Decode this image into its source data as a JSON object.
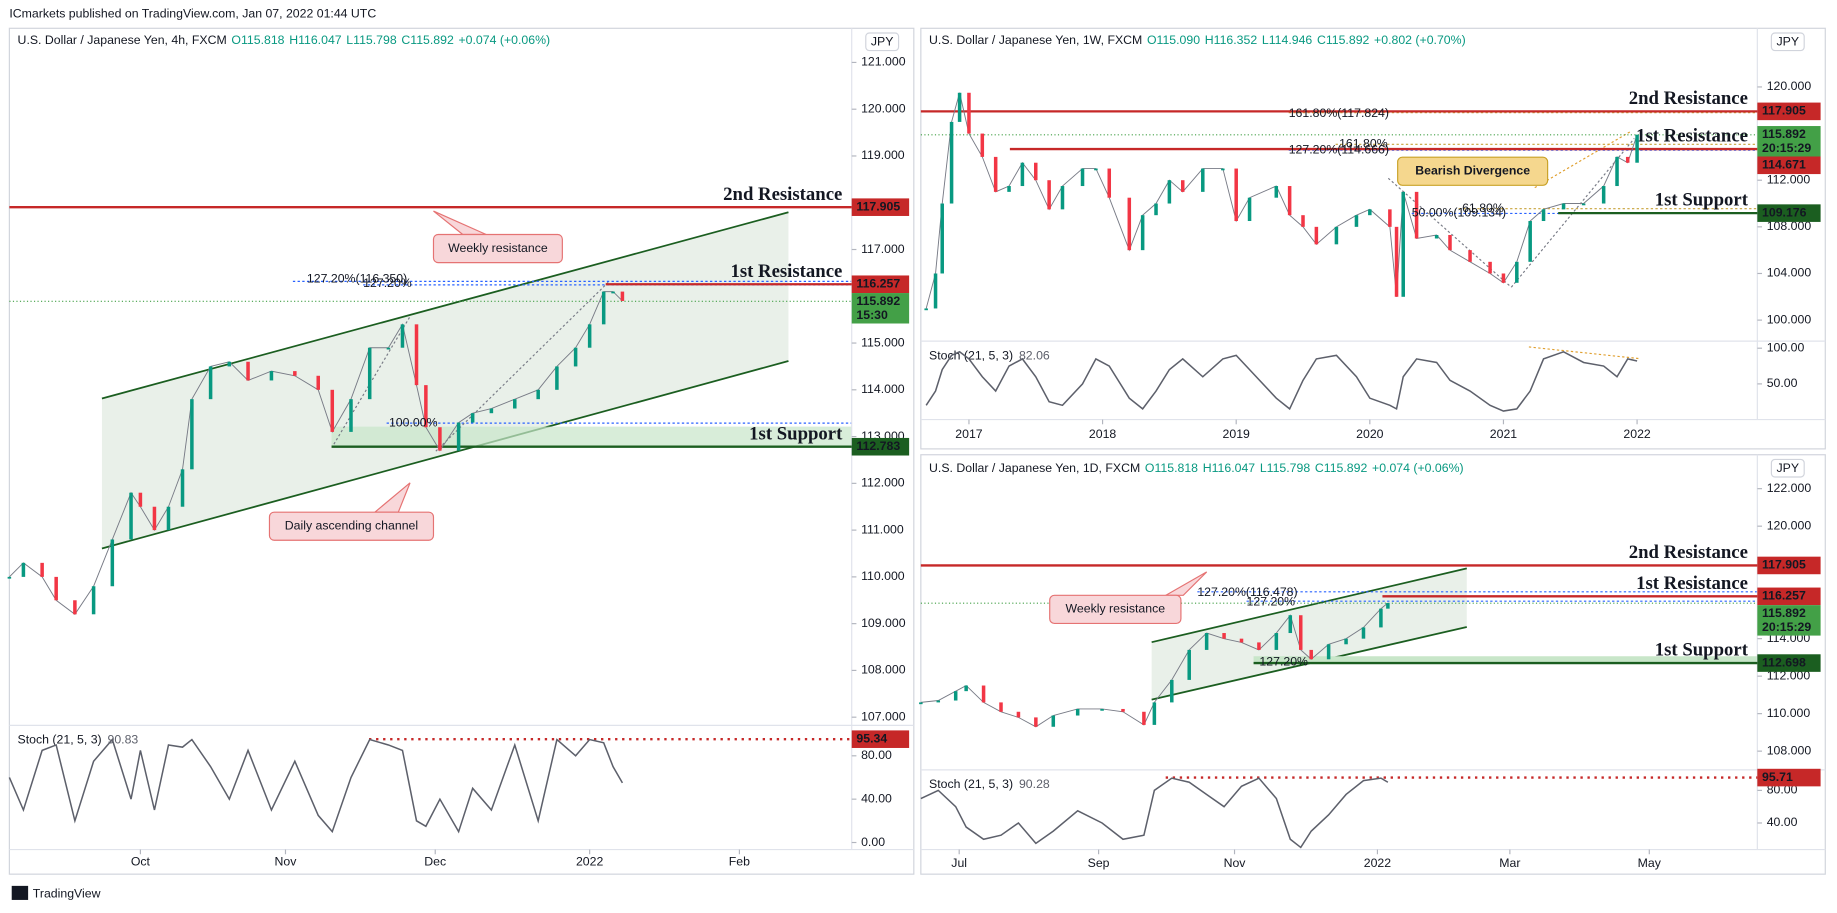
{
  "header": "ICmarkets published on TradingView.com, Jan 07, 2022 01:44 UTC",
  "footer": "TradingView",
  "chart_data": [
    {
      "type": "line",
      "title": "U.S. Dollar / Japanese Yen, 4h, FXCM",
      "ohlc": [
        "O115.818",
        "H116.047",
        "L115.798",
        "C115.892",
        "+0.074 (+0.06%)"
      ],
      "currency": "JPY",
      "x": [
        0,
        3,
        7,
        10,
        14,
        18,
        22,
        26,
        28,
        31,
        34,
        37,
        39,
        43,
        47,
        51,
        56,
        61,
        66,
        69,
        73,
        77,
        81,
        84,
        87,
        89,
        92,
        96,
        99,
        103,
        108,
        113,
        117,
        121,
        124,
        127,
        129,
        131
      ],
      "values": [
        110.0,
        110.3,
        110.0,
        109.5,
        109.2,
        109.8,
        110.8,
        111.8,
        111.5,
        111.0,
        111.5,
        112.3,
        113.8,
        114.5,
        114.6,
        114.2,
        114.4,
        114.3,
        114.0,
        113.1,
        113.8,
        114.9,
        114.9,
        115.4,
        114.1,
        113.2,
        112.7,
        113.3,
        113.5,
        113.6,
        113.8,
        114.0,
        114.5,
        114.9,
        115.4,
        116.1,
        116.1,
        115.9
      ],
      "up_color": "#089981",
      "down_color": "#f23645",
      "xlim": [
        0,
        180
      ],
      "xticks": [
        {
          "value": 28,
          "label": "Oct"
        },
        {
          "value": 59,
          "label": "Nov"
        },
        {
          "value": 91,
          "label": "Dec"
        },
        {
          "value": 124,
          "label": "2022"
        },
        {
          "value": 156,
          "label": "Feb"
        }
      ],
      "ylim": [
        106.85,
        121.73
      ],
      "yticks": [
        {
          "value": 107,
          "label": "107.000"
        },
        {
          "value": 108,
          "label": "108.000"
        },
        {
          "value": 109,
          "label": "109.000"
        },
        {
          "value": 110,
          "label": "110.000"
        },
        {
          "value": 111,
          "label": "111.000"
        },
        {
          "value": 112,
          "label": "112.000"
        },
        {
          "value": 113,
          "label": "113.000"
        },
        {
          "value": 114,
          "label": "114.000"
        },
        {
          "value": 115,
          "label": "115.000"
        },
        {
          "value": 117,
          "label": "117.000"
        },
        {
          "value": 119,
          "label": "119.000"
        },
        {
          "value": 120,
          "label": "120.000"
        },
        {
          "value": 121,
          "label": "121.000"
        }
      ],
      "levels": [
        {
          "label": "2nd Resistance",
          "value": 117.905,
          "color": "#c62828"
        },
        {
          "label": "1st Resistance",
          "value": 116.257,
          "color": "#c62828"
        },
        {
          "label": "1st Support",
          "value": 112.783,
          "color": "#1b5e20"
        }
      ],
      "last": {
        "value": 115.892,
        "countdown": "15:30",
        "color": "#43a047"
      },
      "annotations": [
        "127.20%(116.350)",
        "127.20%",
        "100.00%",
        "Weekly resistance",
        "Daily ascending channel"
      ],
      "stoch": {
        "title": "Stoch (21, 5, 3)",
        "last": 90.83,
        "color": "#5d606b",
        "values": [
          60,
          30,
          85,
          90,
          20,
          75,
          95,
          40,
          85,
          30,
          90,
          88,
          95,
          70,
          40,
          85,
          30,
          75,
          25,
          10,
          60,
          95,
          90,
          85,
          20,
          15,
          40,
          10,
          50,
          30,
          90,
          20,
          95,
          80,
          95,
          92,
          70,
          55
        ],
        "ylim": [
          -6.5,
          107
        ],
        "yticks": [
          {
            "value": 0,
            "label": "0.00"
          },
          {
            "value": 40,
            "label": "40.00"
          },
          {
            "value": 80,
            "label": "80.00"
          }
        ],
        "level": {
          "value": 95.34,
          "color": "#c62828"
        }
      }
    },
    {
      "type": "line",
      "title": "U.S. Dollar / Japanese Yen, 1W, FXCM",
      "ohlc": [
        "O115.090",
        "H116.352",
        "L114.946",
        "C115.892",
        "+0.802 (+0.70%)"
      ],
      "currency": "JPY",
      "x": [
        2016.68,
        2016.75,
        2016.8,
        2016.87,
        2016.93,
        2017.0,
        2017.1,
        2017.2,
        2017.3,
        2017.4,
        2017.5,
        2017.6,
        2017.7,
        2017.85,
        2017.95,
        2018.05,
        2018.2,
        2018.3,
        2018.4,
        2018.5,
        2018.6,
        2018.75,
        2018.9,
        2019.0,
        2019.1,
        2019.3,
        2019.4,
        2019.5,
        2019.6,
        2019.75,
        2019.9,
        2020.0,
        2020.15,
        2020.2,
        2020.25,
        2020.35,
        2020.5,
        2020.6,
        2020.75,
        2020.9,
        2021.0,
        2021.1,
        2021.2,
        2021.3,
        2021.45,
        2021.6,
        2021.75,
        2021.85,
        2021.93,
        2022.0
      ],
      "values": [
        101,
        104,
        110,
        117,
        119.5,
        116,
        114,
        111,
        111.5,
        113.5,
        112,
        109.5,
        111.5,
        113,
        113,
        110.5,
        106,
        109,
        110,
        112,
        111,
        113,
        113,
        108.5,
        110.5,
        111.5,
        109,
        108,
        106.5,
        108,
        109,
        109.5,
        108,
        102,
        111,
        107,
        107.3,
        106,
        105,
        104,
        103.2,
        105,
        108.5,
        109.5,
        110,
        110,
        111.5,
        114,
        113.5,
        115.9
      ],
      "up_color": "#089981",
      "down_color": "#f23645",
      "xlim": [
        2016.64,
        2022.9
      ],
      "xticks": [
        2017,
        2018,
        2019,
        2020,
        2021,
        2022
      ],
      "ylim": [
        98.3,
        125.03
      ],
      "yticks": [
        {
          "value": 100,
          "label": "100.000"
        },
        {
          "value": 104,
          "label": "104.000"
        },
        {
          "value": 108,
          "label": "108.000"
        },
        {
          "value": 112,
          "label": "112.000"
        },
        {
          "value": 120,
          "label": "120.000"
        }
      ],
      "levels": [
        {
          "label": "2nd Resistance",
          "value": 117.905,
          "color": "#c62828"
        },
        {
          "label": "1st Resistance",
          "value": 114.671,
          "color": "#c62828"
        },
        {
          "label": "1st Support",
          "value": 109.176,
          "color": "#1b5e20"
        }
      ],
      "last": {
        "value": 115.892,
        "countdown": "20:15:29",
        "color": "#43a047"
      },
      "annotations": [
        "161.80%(117.824)",
        "161.80%",
        "127.20%(114.666)",
        "61.80%",
        "50.00%(109.134)",
        "Bearish Divergence"
      ],
      "stoch": {
        "title": "Stoch (21, 5, 3)",
        "last": 82.06,
        "color": "#5d606b",
        "values": [
          20,
          40,
          70,
          90,
          95,
          85,
          60,
          40,
          75,
          85,
          60,
          25,
          20,
          50,
          85,
          75,
          30,
          15,
          40,
          70,
          85,
          60,
          85,
          90,
          70,
          30,
          15,
          55,
          85,
          90,
          60,
          30,
          20,
          15,
          60,
          85,
          80,
          55,
          40,
          20,
          12,
          15,
          40,
          85,
          95,
          80,
          75,
          60,
          85,
          82
        ],
        "ylim": [
          0,
          108.3
        ],
        "yticks": [
          {
            "value": 50,
            "label": "50.00"
          },
          {
            "value": 100,
            "label": "100.00"
          }
        ]
      }
    },
    {
      "type": "line",
      "title": "U.S. Dollar / Japanese Yen, 1D, FXCM",
      "ohlc": [
        "O115.818",
        "H116.047",
        "L115.798",
        "C115.892",
        "+0.074 (+0.06%)"
      ],
      "currency": "JPY",
      "x": [
        0,
        5,
        10,
        13,
        18,
        23,
        28,
        33,
        38,
        45,
        52,
        58,
        64,
        67,
        72,
        77,
        82,
        87,
        92,
        97,
        102,
        106,
        109,
        112,
        117,
        122,
        127,
        132,
        134
      ],
      "values": [
        110.6,
        110.7,
        111.2,
        111.5,
        110.6,
        110.1,
        109.8,
        109.3,
        109.9,
        110.25,
        110.25,
        110.1,
        109.4,
        110.6,
        111.8,
        113.4,
        114.3,
        114.0,
        113.8,
        113.4,
        114.3,
        115.25,
        113.4,
        112.9,
        113.7,
        114.0,
        114.6,
        115.6,
        115.9
      ],
      "up_color": "#089981",
      "down_color": "#f23645",
      "xlim": [
        0,
        240
      ],
      "xticks": [
        {
          "value": 11,
          "label": "Jul"
        },
        {
          "value": 51,
          "label": "Sep"
        },
        {
          "value": 90,
          "label": "Nov"
        },
        {
          "value": 131,
          "label": "2022"
        },
        {
          "value": 169,
          "label": "Mar"
        },
        {
          "value": 209,
          "label": "May"
        }
      ],
      "ylim": [
        107.125,
        123.81
      ],
      "yticks": [
        {
          "value": 108,
          "label": "108.000"
        },
        {
          "value": 110,
          "label": "110.000"
        },
        {
          "value": 112,
          "label": "112.000"
        },
        {
          "value": 114,
          "label": "114.000"
        },
        {
          "value": 120,
          "label": "120.000"
        },
        {
          "value": 122,
          "label": "122.000"
        }
      ],
      "levels": [
        {
          "label": "2nd Resistance",
          "value": 117.905,
          "color": "#c62828"
        },
        {
          "label": "1st Resistance",
          "value": 116.257,
          "color": "#c62828"
        },
        {
          "label": "1st Support",
          "value": 112.698,
          "color": "#1b5e20"
        }
      ],
      "last": {
        "value": 115.892,
        "countdown": "20:15:29",
        "color": "#43a047"
      },
      "annotations": [
        "127.20%(116.478)",
        "127.20%",
        "127.20%",
        "Weekly resistance"
      ],
      "stoch": {
        "title": "Stoch (21, 5, 3)",
        "last": 90.28,
        "color": "#5d606b",
        "values": [
          70,
          80,
          60,
          35,
          20,
          25,
          40,
          15,
          30,
          55,
          40,
          20,
          25,
          80,
          95,
          90,
          75,
          60,
          85,
          95,
          70,
          20,
          10,
          30,
          50,
          75,
          92,
          95,
          90
        ],
        "ylim": [
          7.4,
          103.7
        ],
        "yticks": [
          {
            "value": 40,
            "label": "40.00"
          },
          {
            "value": 80,
            "label": "80.00"
          }
        ],
        "level": {
          "value": 95.71,
          "color": "#c62828"
        }
      }
    }
  ]
}
